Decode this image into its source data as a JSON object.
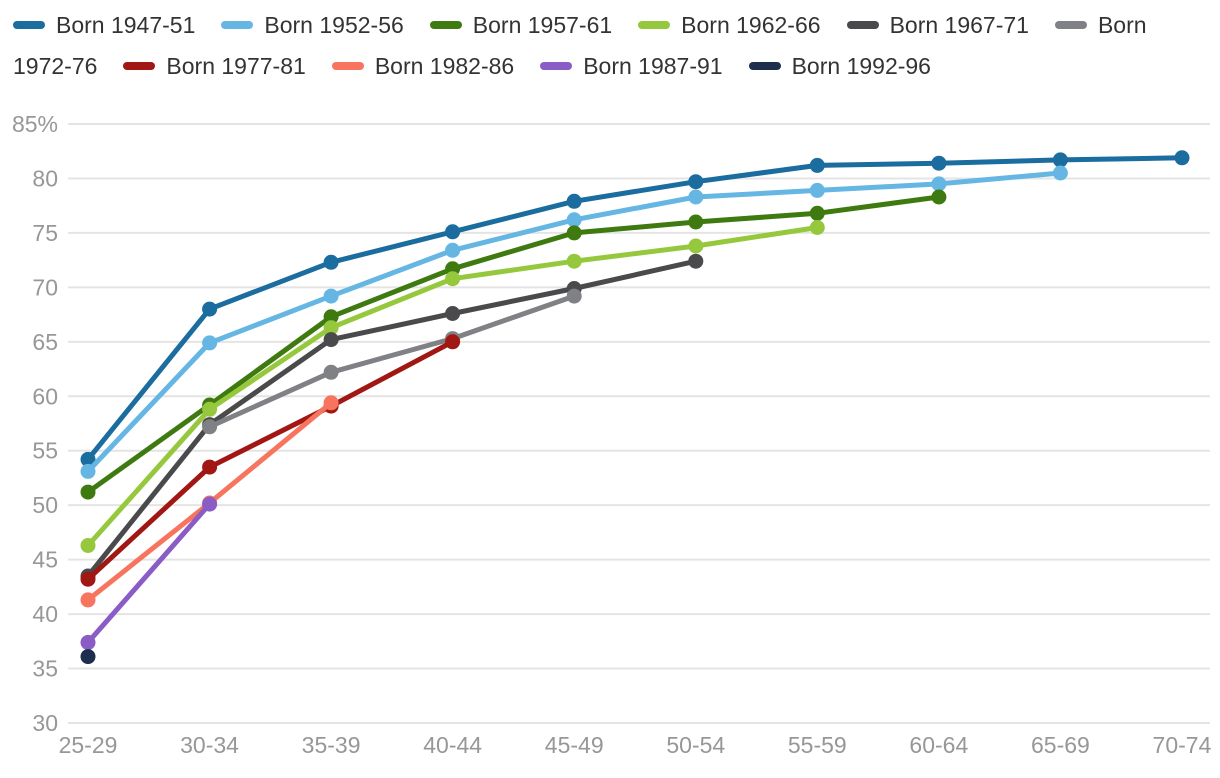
{
  "colors": {
    "background": "#ffffff",
    "grid_line": "#e4e4e4",
    "axis_label": "#979797",
    "legend_text": "#333333"
  },
  "legend": {
    "line1": [
      {
        "color": "#1a6d9e",
        "text": "Born 1947-51"
      },
      {
        "color": "#66b6e4",
        "text": "Born 1952-56"
      },
      {
        "color": "#3f7a10",
        "text": "Born 1957-61"
      },
      {
        "color": "#96c83e",
        "text": "Born 1962-66"
      },
      {
        "color": "#4a4a4c",
        "text": "Born 1967-71"
      },
      {
        "color": "#808184",
        "text": "Born"
      }
    ],
    "line2": [
      {
        "color": null,
        "text": "1972-76"
      },
      {
        "color": "#a01713",
        "text": "Born 1977-81"
      },
      {
        "color": "#f7745f",
        "text": "Born 1982-86"
      },
      {
        "color": "#8a5cc6",
        "text": "Born 1987-91"
      },
      {
        "color": "#1d2e4e",
        "text": "Born 1992-96"
      }
    ]
  },
  "chart_data": {
    "type": "line",
    "title": "",
    "xlabel": "",
    "ylabel": "",
    "grid": true,
    "legend_position": "top",
    "ylim": [
      30,
      85
    ],
    "categories": [
      "25-29",
      "30-34",
      "35-39",
      "40-44",
      "45-49",
      "50-54",
      "55-59",
      "60-64",
      "65-69",
      "70-74"
    ],
    "y_ticks": [
      {
        "label": "85%",
        "value": 85
      },
      {
        "label": "80",
        "value": 80
      },
      {
        "label": "75",
        "value": 75
      },
      {
        "label": "70",
        "value": 70
      },
      {
        "label": "65",
        "value": 65
      },
      {
        "label": "60",
        "value": 60
      },
      {
        "label": "55",
        "value": 55
      },
      {
        "label": "50",
        "value": 50
      },
      {
        "label": "45",
        "value": 45
      },
      {
        "label": "40",
        "value": 40
      },
      {
        "label": "35",
        "value": 35
      },
      {
        "label": "30",
        "value": 30
      }
    ],
    "series": [
      {
        "name": "Born 1947-51",
        "color": "#1a6d9e",
        "values": [
          54.2,
          68.0,
          72.3,
          75.1,
          77.9,
          79.7,
          81.2,
          81.4,
          81.7,
          81.9
        ]
      },
      {
        "name": "Born 1952-56",
        "color": "#66b6e4",
        "values": [
          53.1,
          64.9,
          69.2,
          73.4,
          76.2,
          78.3,
          78.9,
          79.5,
          80.5,
          null
        ]
      },
      {
        "name": "Born 1957-61",
        "color": "#3f7a10",
        "values": [
          51.2,
          59.2,
          67.3,
          71.7,
          75.0,
          76.0,
          76.8,
          78.3,
          null,
          null
        ]
      },
      {
        "name": "Born 1962-66",
        "color": "#96c83e",
        "values": [
          46.3,
          58.8,
          66.3,
          70.8,
          72.4,
          73.8,
          75.5,
          null,
          null,
          null
        ]
      },
      {
        "name": "Born 1967-71",
        "color": "#4a4a4c",
        "values": [
          43.5,
          57.4,
          65.2,
          67.6,
          69.9,
          72.4,
          null,
          null,
          null,
          null
        ]
      },
      {
        "name": "Born 1972-76",
        "color": "#808184",
        "values": [
          null,
          57.2,
          62.2,
          65.3,
          69.2,
          null,
          null,
          null,
          null,
          null
        ]
      },
      {
        "name": "Born 1977-81",
        "color": "#a01713",
        "values": [
          43.2,
          53.5,
          59.1,
          65.0,
          null,
          null,
          null,
          null,
          null,
          null
        ]
      },
      {
        "name": "Born 1982-86",
        "color": "#f7745f",
        "values": [
          41.3,
          50.2,
          59.4,
          null,
          null,
          null,
          null,
          null,
          null,
          null
        ]
      },
      {
        "name": "Born 1987-91",
        "color": "#8a5cc6",
        "values": [
          37.4,
          50.1,
          null,
          null,
          null,
          null,
          null,
          null,
          null,
          null
        ]
      },
      {
        "name": "Born 1992-96",
        "color": "#1d2e4e",
        "values": [
          36.1,
          null,
          null,
          null,
          null,
          null,
          null,
          null,
          null,
          null
        ]
      }
    ]
  }
}
